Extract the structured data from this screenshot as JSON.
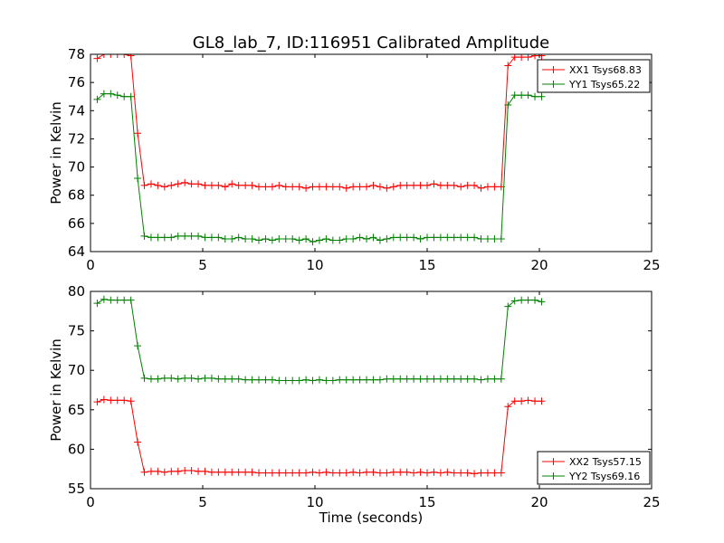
{
  "title": "GL8_lab_7, ID:116951 Calibrated Amplitude",
  "chart_data": [
    {
      "type": "line",
      "ylabel": "Power in Kelvin",
      "xlabel": "",
      "xlim": [
        0,
        25
      ],
      "ylim": [
        64,
        78
      ],
      "xticks": [
        0,
        5,
        10,
        15,
        20,
        25
      ],
      "yticks": [
        64,
        66,
        68,
        70,
        72,
        74,
        76,
        78
      ],
      "grid": false,
      "legend_position": "top-right",
      "x": [
        0.3,
        0.6,
        0.9,
        1.2,
        1.5,
        1.8,
        2.1,
        2.4,
        2.7,
        3.0,
        3.3,
        3.6,
        3.9,
        4.2,
        4.5,
        4.8,
        5.1,
        5.4,
        5.7,
        6.0,
        6.3,
        6.6,
        6.9,
        7.2,
        7.5,
        7.8,
        8.1,
        8.4,
        8.7,
        9.0,
        9.3,
        9.6,
        9.9,
        10.2,
        10.5,
        10.8,
        11.1,
        11.4,
        11.7,
        12.0,
        12.3,
        12.6,
        12.9,
        13.2,
        13.5,
        13.8,
        14.1,
        14.4,
        14.7,
        15.0,
        15.3,
        15.6,
        15.9,
        16.2,
        16.5,
        16.8,
        17.1,
        17.4,
        17.7,
        18.0,
        18.3,
        18.6,
        18.9,
        19.2,
        19.5,
        19.8,
        20.1
      ],
      "series": [
        {
          "name": "XX1 Tsys68.83",
          "color": "#ff0000",
          "values": [
            77.7,
            78.0,
            78.0,
            78.0,
            78.0,
            77.9,
            72.4,
            68.7,
            68.8,
            68.7,
            68.6,
            68.7,
            68.8,
            68.9,
            68.8,
            68.8,
            68.7,
            68.7,
            68.7,
            68.6,
            68.8,
            68.7,
            68.7,
            68.7,
            68.6,
            68.6,
            68.6,
            68.7,
            68.6,
            68.6,
            68.6,
            68.5,
            68.6,
            68.6,
            68.6,
            68.6,
            68.6,
            68.5,
            68.6,
            68.6,
            68.6,
            68.7,
            68.6,
            68.5,
            68.6,
            68.7,
            68.7,
            68.7,
            68.7,
            68.7,
            68.8,
            68.7,
            68.7,
            68.7,
            68.6,
            68.7,
            68.7,
            68.5,
            68.6,
            68.6,
            68.6,
            77.2,
            77.8,
            77.8,
            77.8,
            77.9,
            77.9
          ]
        },
        {
          "name": "YY1 Tsys65.22",
          "color": "#008000",
          "values": [
            74.8,
            75.2,
            75.2,
            75.1,
            75.0,
            75.0,
            69.2,
            65.1,
            65.0,
            65.0,
            65.0,
            65.0,
            65.1,
            65.1,
            65.1,
            65.1,
            65.0,
            65.0,
            65.0,
            64.9,
            64.9,
            65.0,
            64.9,
            64.9,
            64.8,
            64.9,
            64.8,
            64.9,
            64.9,
            64.9,
            64.8,
            64.9,
            64.7,
            64.8,
            64.9,
            64.8,
            64.8,
            64.9,
            64.9,
            65.0,
            64.9,
            65.0,
            64.8,
            64.9,
            65.0,
            65.0,
            65.0,
            65.0,
            64.9,
            65.0,
            65.0,
            65.0,
            65.0,
            65.0,
            65.0,
            65.0,
            65.0,
            64.9,
            64.9,
            64.9,
            64.9,
            74.4,
            75.1,
            75.1,
            75.1,
            75.0,
            75.0
          ]
        }
      ]
    },
    {
      "type": "line",
      "ylabel": "Power in Kelvin",
      "xlabel": "Time (seconds)",
      "xlim": [
        0,
        25
      ],
      "ylim": [
        55,
        80
      ],
      "xticks": [
        0,
        5,
        10,
        15,
        20,
        25
      ],
      "yticks": [
        55,
        60,
        65,
        70,
        75,
        80
      ],
      "grid": false,
      "legend_position": "bottom-right",
      "x": [
        0.3,
        0.6,
        0.9,
        1.2,
        1.5,
        1.8,
        2.1,
        2.4,
        2.7,
        3.0,
        3.3,
        3.6,
        3.9,
        4.2,
        4.5,
        4.8,
        5.1,
        5.4,
        5.7,
        6.0,
        6.3,
        6.6,
        6.9,
        7.2,
        7.5,
        7.8,
        8.1,
        8.4,
        8.7,
        9.0,
        9.3,
        9.6,
        9.9,
        10.2,
        10.5,
        10.8,
        11.1,
        11.4,
        11.7,
        12.0,
        12.3,
        12.6,
        12.9,
        13.2,
        13.5,
        13.8,
        14.1,
        14.4,
        14.7,
        15.0,
        15.3,
        15.6,
        15.9,
        16.2,
        16.5,
        16.8,
        17.1,
        17.4,
        17.7,
        18.0,
        18.3,
        18.6,
        18.9,
        19.2,
        19.5,
        19.8,
        20.1
      ],
      "series": [
        {
          "name": "XX2 Tsys57.15",
          "color": "#ff0000",
          "values": [
            66.0,
            66.3,
            66.2,
            66.2,
            66.2,
            66.1,
            60.9,
            57.1,
            57.2,
            57.2,
            57.1,
            57.2,
            57.2,
            57.3,
            57.3,
            57.2,
            57.2,
            57.1,
            57.1,
            57.1,
            57.1,
            57.1,
            57.1,
            57.1,
            57.0,
            57.0,
            57.0,
            57.0,
            57.0,
            57.0,
            57.0,
            57.0,
            57.1,
            57.0,
            57.1,
            57.0,
            57.0,
            57.0,
            57.1,
            57.0,
            57.1,
            57.1,
            57.0,
            57.0,
            57.1,
            57.1,
            57.1,
            57.0,
            57.1,
            57.0,
            57.1,
            57.0,
            57.1,
            57.0,
            57.0,
            57.0,
            56.9,
            57.0,
            57.0,
            57.0,
            57.0,
            65.4,
            66.1,
            66.1,
            66.2,
            66.1,
            66.1
          ]
        },
        {
          "name": "YY2 Tsys69.16",
          "color": "#008000",
          "values": [
            78.5,
            79.0,
            78.9,
            78.9,
            78.9,
            78.9,
            73.1,
            69.0,
            68.9,
            68.9,
            69.0,
            69.0,
            68.9,
            69.0,
            69.0,
            68.9,
            69.0,
            69.0,
            68.9,
            68.9,
            68.9,
            68.9,
            68.8,
            68.8,
            68.8,
            68.8,
            68.8,
            68.7,
            68.7,
            68.7,
            68.7,
            68.8,
            68.7,
            68.8,
            68.7,
            68.7,
            68.8,
            68.8,
            68.8,
            68.8,
            68.8,
            68.8,
            68.8,
            68.9,
            68.9,
            68.9,
            68.9,
            68.9,
            68.9,
            68.9,
            68.9,
            68.9,
            68.9,
            68.9,
            68.9,
            68.9,
            68.9,
            68.8,
            68.9,
            68.9,
            68.9,
            78.1,
            78.8,
            78.9,
            78.9,
            78.9,
            78.7
          ]
        }
      ]
    }
  ]
}
